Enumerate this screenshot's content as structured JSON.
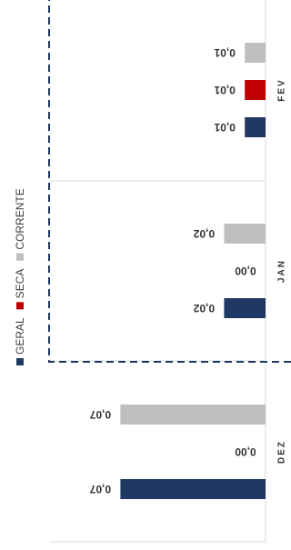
{
  "chart_data": {
    "type": "bar",
    "orientation": "horizontal",
    "categories": [
      "DEZ",
      "JAN",
      "FEV"
    ],
    "series": [
      {
        "name": "GERAL",
        "color": "#1f3864",
        "values": [
          0.07,
          0.02,
          0.01
        ]
      },
      {
        "name": "SECA",
        "color": "#c00000",
        "values": [
          0.0,
          0.0,
          0.01
        ]
      },
      {
        "name": "CORRENTE",
        "color": "#bfbfbf",
        "values": [
          0.07,
          0.02,
          0.01
        ]
      }
    ],
    "value_labels": [
      [
        "0,07",
        "0,00",
        "0,07"
      ],
      [
        "0,02",
        "0,00",
        "0,02"
      ],
      [
        "0,01",
        "0,01",
        "0,01"
      ]
    ],
    "xlim": [
      0,
      0.07
    ],
    "highlighted_categories": [
      "JAN",
      "FEV"
    ],
    "highlight_style": "dashed box",
    "highlight_color": "#1f3864",
    "legend_position": "left",
    "grid": false
  }
}
